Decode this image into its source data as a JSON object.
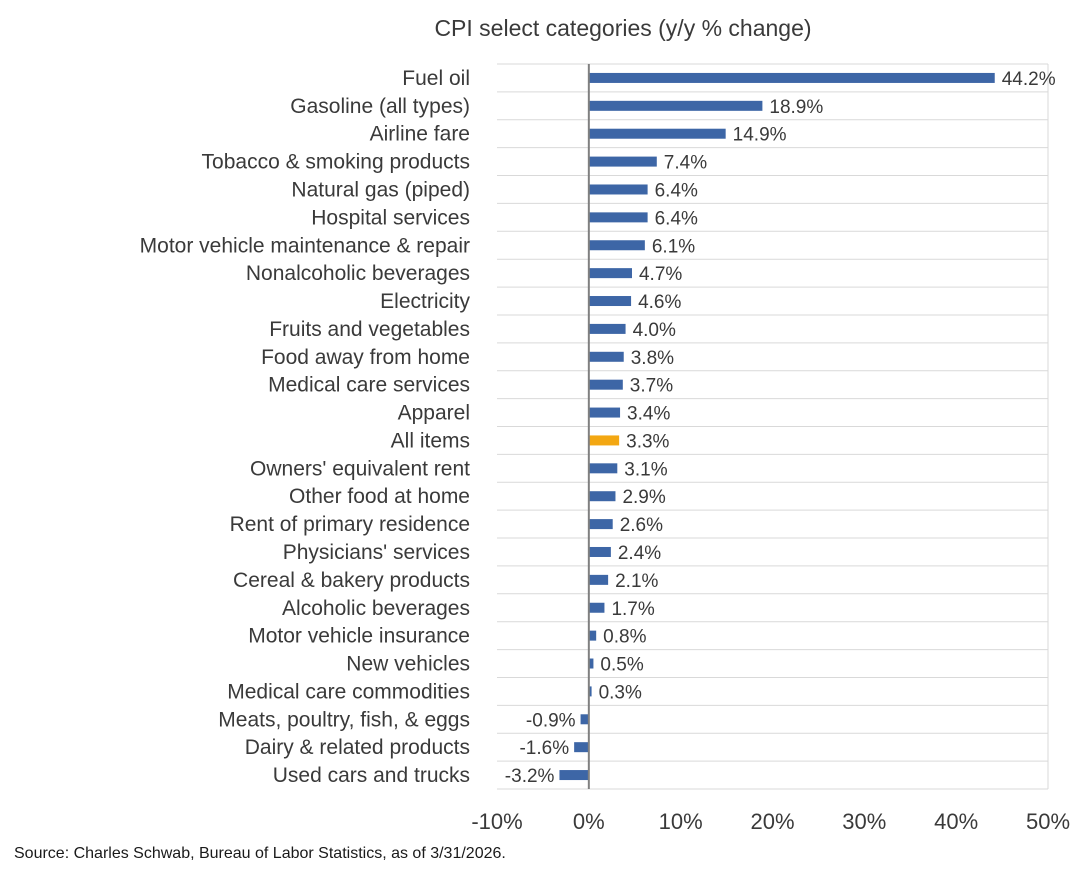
{
  "chart_data": {
    "type": "bar",
    "orientation": "horizontal",
    "title": "CPI select categories (y/y % change)",
    "xlabel": "",
    "ylabel": "",
    "xlim": [
      -10,
      50
    ],
    "xticks": [
      -10,
      0,
      10,
      20,
      30,
      40,
      50
    ],
    "xtick_labels": [
      "-10%",
      "0%",
      "10%",
      "20%",
      "30%",
      "40%",
      "50%"
    ],
    "grid": true,
    "categories": [
      "Fuel oil",
      "Gasoline (all types)",
      "Airline fare",
      "Tobacco & smoking products",
      "Natural gas (piped)",
      "Hospital services",
      "Motor vehicle maintenance & repair",
      "Nonalcoholic beverages",
      "Electricity",
      "Fruits and vegetables",
      "Food away from home",
      "Medical care services",
      "Apparel",
      "All items",
      "Owners' equivalent rent",
      "Other food at home",
      "Rent of primary residence",
      "Physicians' services",
      "Cereal & bakery products",
      "Alcoholic beverages",
      "Motor vehicle insurance",
      "New vehicles",
      "Medical care commodities",
      "Meats, poultry, fish, & eggs",
      "Dairy & related products",
      "Used cars and trucks"
    ],
    "values": [
      44.2,
      18.9,
      14.9,
      7.4,
      6.4,
      6.4,
      6.1,
      4.7,
      4.6,
      4.0,
      3.8,
      3.7,
      3.4,
      3.3,
      3.1,
      2.9,
      2.6,
      2.4,
      2.1,
      1.7,
      0.8,
      0.5,
      0.3,
      -0.9,
      -1.6,
      -3.2
    ],
    "value_labels": [
      "44.2%",
      "18.9%",
      "14.9%",
      "7.4%",
      "6.4%",
      "6.4%",
      "6.1%",
      "4.7%",
      "4.6%",
      "4.0%",
      "3.8%",
      "3.7%",
      "3.4%",
      "3.3%",
      "3.1%",
      "2.9%",
      "2.6%",
      "2.4%",
      "2.1%",
      "1.7%",
      "0.8%",
      "0.5%",
      "0.3%",
      "-0.9%",
      "-1.6%",
      "-3.2%"
    ],
    "highlight_category": "All items",
    "colors": {
      "bar": "#3d66a6",
      "highlight": "#f3a712",
      "grid": "#d9d9d9",
      "axis": "#808080",
      "text": "#3a3a3a"
    },
    "source": "Source: Charles Schwab, Bureau of Labor Statistics, as of 3/31/2026."
  }
}
